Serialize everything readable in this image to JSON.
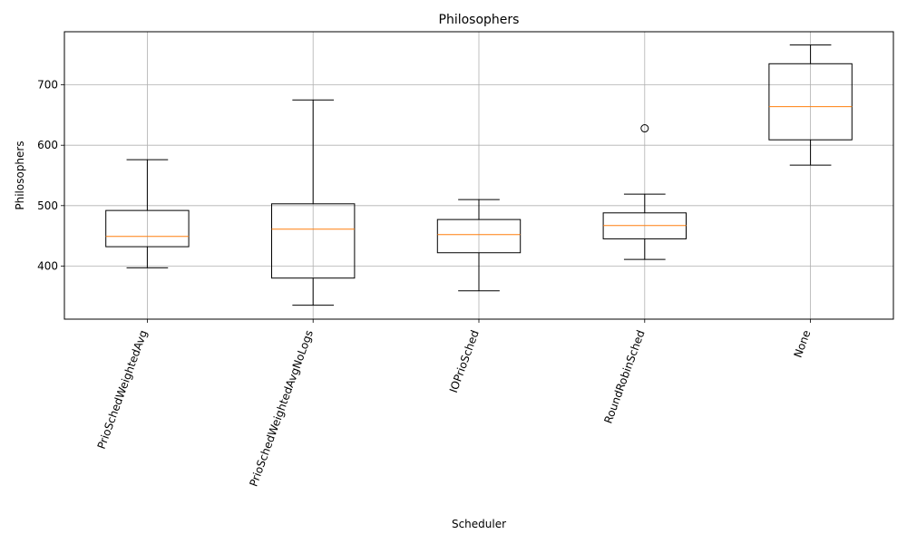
{
  "chart_data": {
    "type": "boxplot",
    "title": "Philosophers",
    "xlabel": "Scheduler",
    "ylabel": "Philosophers",
    "ylim": [
      312,
      788
    ],
    "yticks": [
      400,
      500,
      600,
      700
    ],
    "grid": true,
    "x_tick_rotation_deg": 70,
    "categories": [
      "PrioSchedWeightedAvg",
      "PrioSchedWeightedAvgNoLogs",
      "IOPrioSched",
      "RoundRobinSched",
      "None"
    ],
    "boxes": [
      {
        "whisker_low": 397,
        "q1": 432,
        "median": 449,
        "q3": 492,
        "whisker_high": 576,
        "outliers": []
      },
      {
        "whisker_low": 335,
        "q1": 380,
        "median": 461,
        "q3": 503,
        "whisker_high": 675,
        "outliers": []
      },
      {
        "whisker_low": 359,
        "q1": 422,
        "median": 452,
        "q3": 477,
        "whisker_high": 510,
        "outliers": []
      },
      {
        "whisker_low": 411,
        "q1": 445,
        "median": 467,
        "q3": 488,
        "whisker_high": 519,
        "outliers": [
          628
        ]
      },
      {
        "whisker_low": 567,
        "q1": 609,
        "median": 664,
        "q3": 735,
        "whisker_high": 766,
        "outliers": []
      }
    ],
    "colors": {
      "box": "#000000",
      "median": "#ff7f0e",
      "grid": "#b0b0b0"
    }
  }
}
